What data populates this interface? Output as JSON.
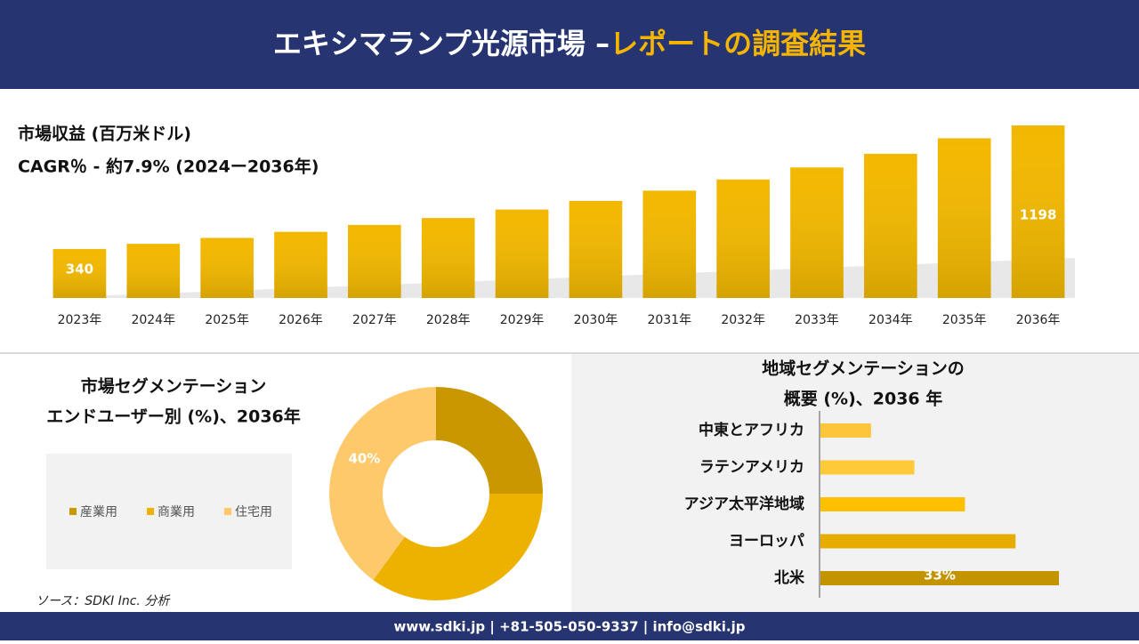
{
  "header": {
    "title": "エキシマランプ光源市場 –",
    "title_highlight": "レポートの調査結果"
  },
  "chart_data": [
    {
      "type": "bar",
      "title": "市場収益 (百万米ドル)",
      "subtitle": "CAGR％ - 約7.9% (2024ー2036年)",
      "categories": [
        "2023年",
        "2024年",
        "2025年",
        "2026年",
        "2027年",
        "2028年",
        "2029年",
        "2030年",
        "2031年",
        "2032年",
        "2033年",
        "2034年",
        "2035年",
        "2036年"
      ],
      "values": [
        340,
        376,
        417,
        459,
        507,
        555,
        614,
        674,
        745,
        823,
        906,
        1001,
        1109,
        1198
      ],
      "value_labels": [
        "340",
        null,
        null,
        null,
        null,
        null,
        null,
        null,
        null,
        null,
        null,
        null,
        null,
        "1198"
      ],
      "color": "#f2b800"
    },
    {
      "type": "donut",
      "title": [
        "市場セグメンテーション",
        "エンドユーザー別 (%)、2036年"
      ],
      "categories": [
        "産業用",
        "商業用",
        "住宅用"
      ],
      "values": [
        25,
        35,
        40
      ],
      "value_labels": [
        null,
        null,
        "40%"
      ],
      "colors": [
        "#c99700",
        "#edb200",
        "#fdc96a"
      ]
    },
    {
      "type": "hbar",
      "title": [
        "地域セグメンテーションの",
        "概要 (%)、2036 年"
      ],
      "categories": [
        "中東とアフリカ",
        "ラテンアメリカ",
        "アジア太平洋地域",
        "ヨーロッパ",
        "北米"
      ],
      "values": [
        7,
        13,
        20,
        27,
        33
      ],
      "value_labels": [
        null,
        null,
        null,
        null,
        "33%"
      ],
      "colors": [
        "#fdc63a",
        "#ffca3a",
        "#ffc000",
        "#e6ad00",
        "#c49300"
      ]
    }
  ],
  "source": "ソース：SDKI Inc. 分析",
  "footer": "www.sdki.jp | +81-505-050-9337 | info@sdki.jp"
}
